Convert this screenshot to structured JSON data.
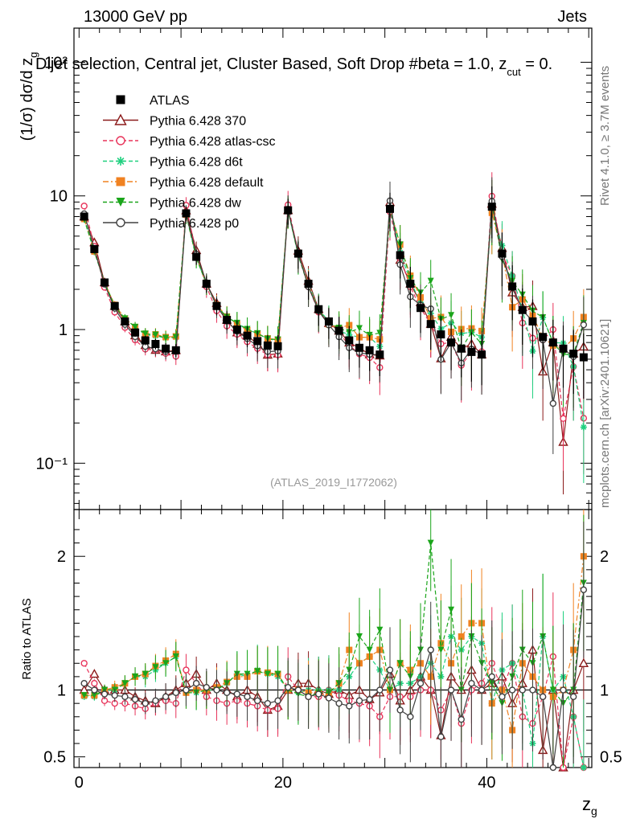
{
  "header": {
    "energy": "13000 GeV pp",
    "category": "Jets"
  },
  "side_labels": {
    "rivet": "Rivet 4.1.0, ≥ 3.7M events",
    "mcplots": "mcplots.cern.ch [arXiv:2401.10621]"
  },
  "colors": {
    "ATLAS": "#000000",
    "370": "#8b1a1a",
    "atlas-csc": "#e8335a",
    "d6t": "#1fd07f",
    "default": "#f08221",
    "dw": "#1aa51a",
    "p0": "#404040"
  },
  "chart_data": {
    "type": "line",
    "title": "Dijet selection, Central jet, Cluster Based, Soft Drop #beta = 1.0, z_cut = 0.",
    "title_main": "Dijet selection, Central jet, Cluster Based, Soft Drop #beta = 1.0, z",
    "title_sub": "cut",
    "title_tail": " = 0.",
    "reference": "(ATLAS_2019_I1772062)",
    "ylabel": "(1/σ) dσ/d z",
    "ylabel_sub": "g",
    "xlabel": "z",
    "xlabel_sub": "g",
    "ratio_ylabel": "Ratio to ATLAS",
    "xlim": [
      -0.5,
      50.3
    ],
    "ylim": [
      0.045,
      180
    ],
    "ylog": true,
    "ratio_ylim": [
      0.42,
      2.35
    ],
    "x_ticks": [
      "0",
      "20",
      "40"
    ],
    "y_ticks": [
      "10⁻¹",
      "1",
      "10",
      "10²"
    ],
    "ratio_ticks": [
      "0.5",
      "1",
      "2"
    ],
    "legend": [
      {
        "name": "ATLAS",
        "marker": "square-filled",
        "line": "none"
      },
      {
        "name": "Pythia 6.428 370",
        "marker": "triangle-open",
        "line": "solid"
      },
      {
        "name": "Pythia 6.428 atlas-csc",
        "marker": "circle-open",
        "line": "dashed"
      },
      {
        "name": "Pythia 6.428 d6t",
        "marker": "star",
        "line": "dashed"
      },
      {
        "name": "Pythia 6.428 default",
        "marker": "square-filled",
        "line": "dashdot"
      },
      {
        "name": "Pythia 6.428 dw",
        "marker": "triangle-down-filled",
        "line": "dashed"
      },
      {
        "name": "Pythia 6.428 p0",
        "marker": "circle-open",
        "line": "solid"
      }
    ],
    "x": [
      0.5,
      1.5,
      2.5,
      3.5,
      4.5,
      5.5,
      6.5,
      7.5,
      8.5,
      9.5,
      10.5,
      11.5,
      12.5,
      13.5,
      14.5,
      15.5,
      16.5,
      17.5,
      18.5,
      19.5,
      20.5,
      21.5,
      22.5,
      23.5,
      24.5,
      25.5,
      26.5,
      27.5,
      28.5,
      29.5,
      30.5,
      31.5,
      32.5,
      33.5,
      34.5,
      35.5,
      36.5,
      37.5,
      38.5,
      39.5,
      40.5,
      41.5,
      42.5,
      43.5,
      44.5,
      45.5,
      46.5,
      47.5,
      48.5,
      49.5
    ],
    "atlas": [
      7.0,
      4.0,
      2.25,
      1.5,
      1.15,
      0.95,
      0.83,
      0.78,
      0.72,
      0.7,
      7.4,
      3.5,
      2.2,
      1.5,
      1.18,
      1.0,
      0.9,
      0.82,
      0.76,
      0.75,
      7.8,
      3.7,
      2.2,
      1.42,
      1.15,
      0.98,
      0.83,
      0.73,
      0.7,
      0.65,
      8.0,
      3.6,
      2.2,
      1.45,
      1.1,
      0.92,
      0.8,
      0.72,
      0.68,
      0.65,
      8.3,
      3.7,
      2.1,
      1.4,
      1.15,
      0.88,
      0.8,
      0.72,
      0.66,
      0.62
    ],
    "series": [
      {
        "name": "Pythia 6.428 370",
        "key": "370",
        "ratio": [
          1.0,
          1.12,
          1.0,
          1.0,
          1.0,
          0.95,
          0.92,
          0.9,
          0.95,
          1.0,
          1.05,
          1.12,
          1.0,
          1.05,
          1.0,
          0.95,
          1.0,
          0.95,
          0.85,
          0.88,
          1.0,
          1.05,
          1.05,
          1.0,
          0.97,
          1.0,
          0.96,
          1.0,
          0.93,
          0.98,
          1.12,
          0.92,
          1.0,
          1.1,
          1.0,
          0.66,
          1.1,
          1.0,
          1.15,
          1.0,
          1.05,
          1.1,
          0.9,
          1.05,
          1.3,
          0.55,
          1.0,
          0.2,
          1.0,
          1.2
        ]
      },
      {
        "name": "Pythia 6.428 atlas-csc",
        "key": "atlas-csc",
        "ratio": [
          1.2,
          1.05,
          0.92,
          0.9,
          0.9,
          0.88,
          0.86,
          0.9,
          0.92,
          0.9,
          1.15,
          1.05,
          0.95,
          0.92,
          0.9,
          0.92,
          0.9,
          0.88,
          0.85,
          0.86,
          1.1,
          1.0,
          0.95,
          0.95,
          1.0,
          0.96,
          0.92,
          0.9,
          0.88,
          0.8,
          0.95,
          0.95,
          0.95,
          1.0,
          1.0,
          0.85,
          1.0,
          0.75,
          1.0,
          1.05,
          1.2,
          1.0,
          1.2,
          0.8,
          0.75,
          0.95,
          1.25,
          0.3,
          0.8,
          0.35
        ]
      },
      {
        "name": "Pythia 6.428 d6t",
        "key": "d6t",
        "ratio": [
          0.95,
          0.95,
          1.0,
          1.0,
          1.05,
          1.1,
          1.1,
          1.15,
          1.2,
          1.25,
          1.0,
          0.98,
          1.0,
          1.0,
          1.05,
          1.12,
          1.1,
          1.15,
          1.12,
          1.1,
          1.0,
          0.98,
          1.0,
          1.0,
          1.0,
          1.0,
          1.1,
          1.2,
          1.25,
          1.15,
          1.0,
          1.05,
          1.05,
          1.1,
          1.2,
          1.1,
          1.4,
          1.3,
          1.4,
          1.35,
          0.9,
          1.15,
          1.2,
          1.0,
          0.6,
          1.4,
          1.0,
          1.1,
          0.8,
          0.3
        ]
      },
      {
        "name": "Pythia 6.428 default",
        "key": "default",
        "ratio": [
          0.96,
          0.96,
          1.0,
          1.02,
          1.05,
          1.1,
          1.12,
          1.18,
          1.22,
          1.27,
          0.98,
          1.0,
          1.0,
          1.02,
          1.06,
          1.1,
          1.1,
          1.14,
          1.13,
          1.12,
          1.0,
          1.0,
          0.98,
          0.98,
          0.95,
          1.05,
          1.3,
          1.2,
          1.25,
          1.3,
          1.0,
          1.2,
          1.15,
          1.2,
          1.1,
          1.35,
          1.2,
          1.4,
          1.5,
          1.5,
          0.9,
          1.0,
          0.7,
          1.2,
          1.1,
          1.0,
          0.95,
          1.0,
          1.3,
          2.0
        ]
      },
      {
        "name": "Pythia 6.428 dw",
        "key": "dw",
        "ratio": [
          0.96,
          0.96,
          1.0,
          1.0,
          1.05,
          1.1,
          1.12,
          1.17,
          1.2,
          1.25,
          0.98,
          0.98,
          1.0,
          1.0,
          1.05,
          1.12,
          1.12,
          1.14,
          1.12,
          1.12,
          1.0,
          0.97,
          0.95,
          0.98,
          0.98,
          1.05,
          1.15,
          1.4,
          1.3,
          1.45,
          1.0,
          1.2,
          1.1,
          1.3,
          2.1,
          1.3,
          1.6,
          1.0,
          1.4,
          1.2,
          1.05,
          0.9,
          1.1,
          1.3,
          1.2,
          1.4,
          1.0,
          0.9,
          1.0,
          1.8
        ]
      },
      {
        "name": "Pythia 6.428 p0",
        "key": "p0",
        "ratio": [
          1.05,
          1.0,
          0.97,
          0.96,
          0.95,
          0.93,
          0.9,
          0.92,
          0.95,
          0.98,
          1.0,
          1.05,
          1.02,
          1.0,
          0.98,
          0.97,
          0.95,
          0.92,
          0.9,
          0.92,
          1.02,
          1.0,
          0.95,
          0.97,
          0.94,
          0.9,
          0.88,
          0.92,
          0.93,
          1.0,
          1.15,
          0.85,
          0.8,
          1.05,
          1.3,
          0.65,
          1.0,
          0.78,
          1.05,
          1.0,
          1.1,
          0.95,
          1.0,
          1.0,
          1.0,
          0.95,
          0.35,
          1.0,
          0.95,
          1.75
        ]
      }
    ]
  }
}
